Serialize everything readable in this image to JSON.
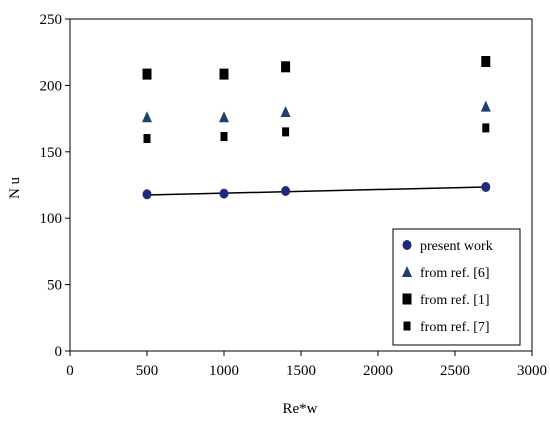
{
  "chart_data": {
    "type": "scatter",
    "title": "",
    "xlabel": "Re*w",
    "ylabel": "N u",
    "xlim": [
      0,
      3000
    ],
    "ylim": [
      0,
      250
    ],
    "xticks": [
      0,
      500,
      1000,
      1500,
      2000,
      2500,
      3000
    ],
    "yticks": [
      0,
      50,
      100,
      150,
      200,
      250
    ],
    "xtick_labels": [
      "0",
      "500",
      "1000",
      "1500",
      "2000",
      "2500",
      "3000"
    ],
    "ytick_labels": [
      "0",
      "50",
      "100",
      "150",
      "200",
      "250"
    ],
    "grid": false,
    "legend_position": "lower-right",
    "series": [
      {
        "name": "present work",
        "marker": "circle",
        "color": "#1f2a7a",
        "x": [
          500,
          1000,
          1400,
          2700
        ],
        "y": [
          118,
          118.5,
          120.5,
          123.5
        ],
        "trendline": {
          "x": [
            500,
            2700
          ],
          "y": [
            117.5,
            123.5
          ],
          "color": "#000000"
        }
      },
      {
        "name": "from ref. [6]",
        "marker": "triangle",
        "color": "#1f3f6e",
        "x": [
          500,
          1000,
          1400,
          2700
        ],
        "y": [
          176,
          176,
          180,
          184
        ]
      },
      {
        "name": "from ref. [1]",
        "marker": "square-large",
        "color": "#000000",
        "x": [
          500,
          1000,
          1400,
          2700
        ],
        "y": [
          208.5,
          208.5,
          214,
          218
        ]
      },
      {
        "name": "from ref. [7]",
        "marker": "square-small",
        "color": "#000000",
        "x": [
          500,
          1000,
          1400,
          2700
        ],
        "y": [
          160,
          161.5,
          165,
          168
        ]
      }
    ]
  }
}
